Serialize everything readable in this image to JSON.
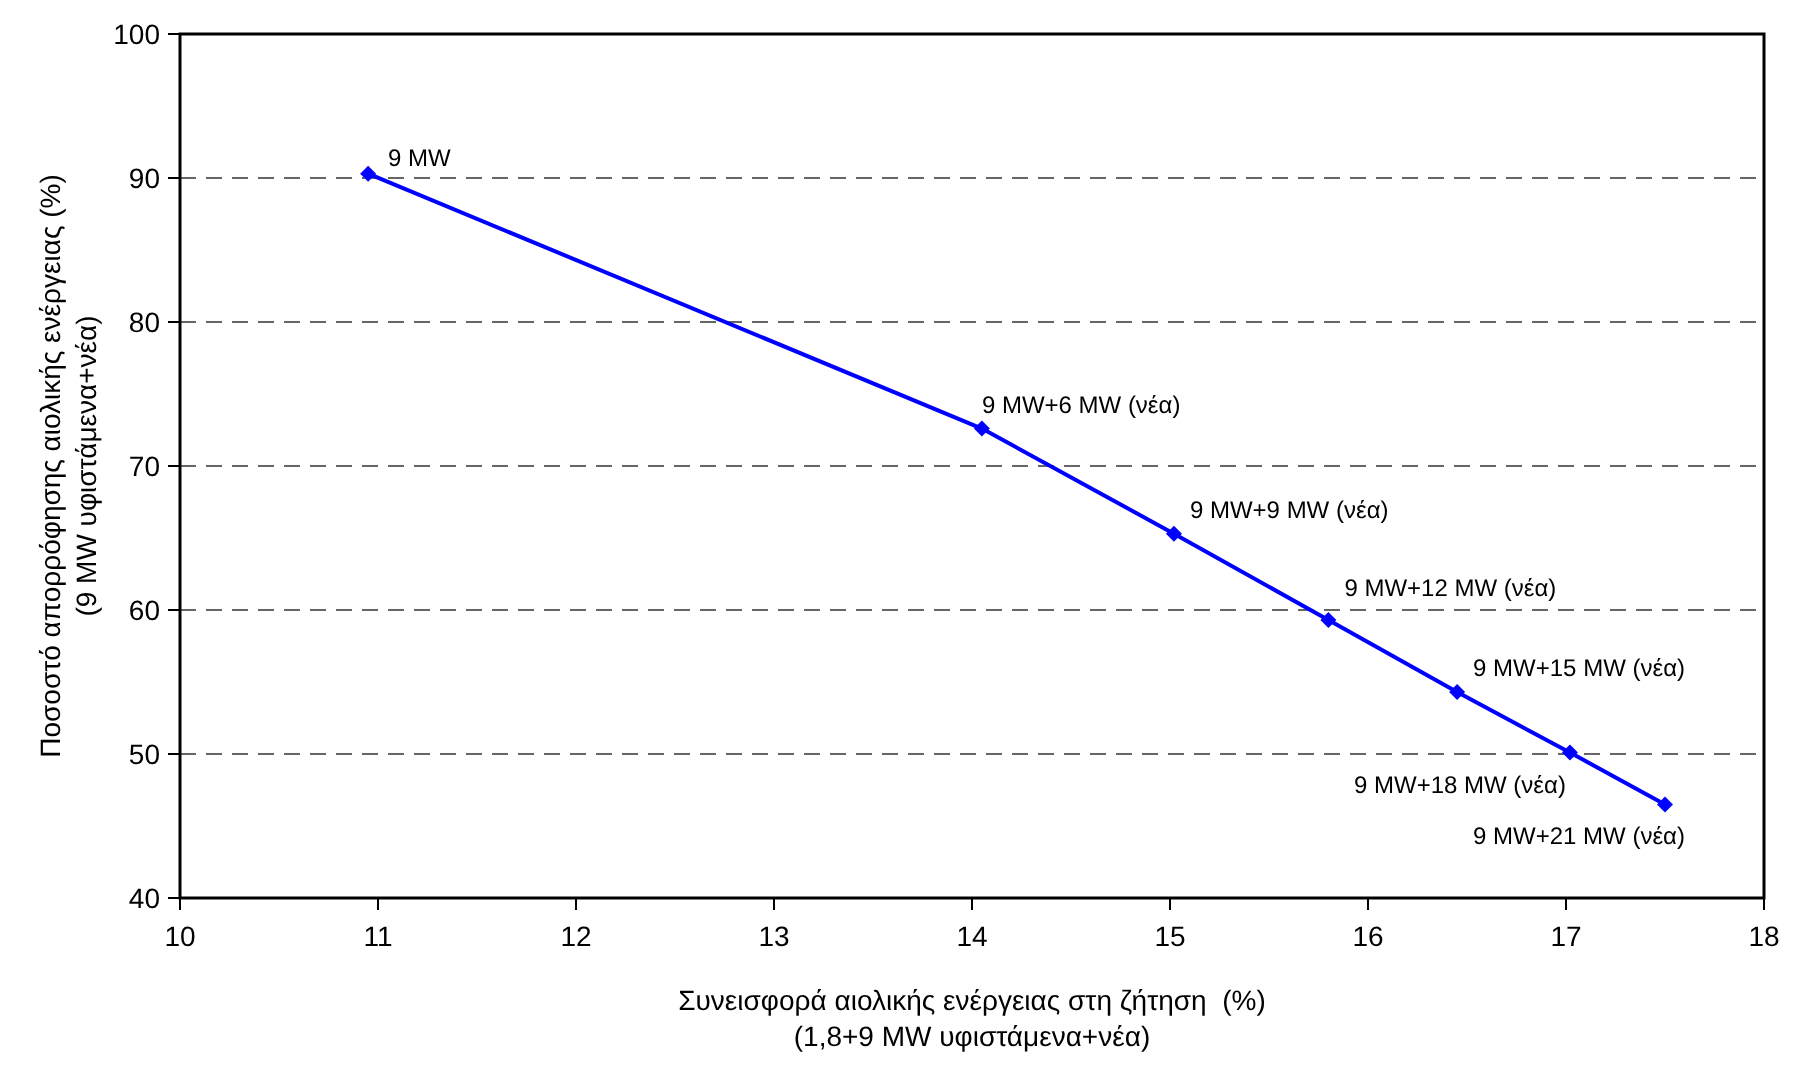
{
  "chart_data": {
    "type": "line",
    "xlabel": "Συνεισφορά αιολικής ενέργειας στη ζήτηση  (%)\n(1,8+9 MW υφιστάμενα+νέα)",
    "ylabel": "Ποσοστό απορρόφησης αιολικής ενέργειας (%)\n(9 MW υφιστάμενα+νέα)",
    "x": [
      10.95,
      14.05,
      15.02,
      15.8,
      16.45,
      17.02,
      17.5
    ],
    "series": [
      {
        "color": "#0000ff",
        "values": [
          90.3,
          72.6,
          65.3,
          59.3,
          54.3,
          50.1,
          46.5
        ]
      }
    ],
    "xlim": [
      10,
      18
    ],
    "xticks": [
      10,
      11,
      12,
      13,
      14,
      15,
      16,
      17,
      18
    ],
    "ylim": [
      40,
      100
    ],
    "yticks": [
      40,
      50,
      60,
      70,
      80,
      90,
      100
    ],
    "grid": "y",
    "marker": "diamond",
    "line_style": "solid",
    "annotations": [
      {
        "text": "9 MW",
        "x": 10.95,
        "y": 90.3
      },
      {
        "text": "9 MW+6 MW (νέα)",
        "x": 14.05,
        "y": 72.6
      },
      {
        "text": "9 MW+9 MW (νέα)",
        "x": 15.02,
        "y": 65.3
      },
      {
        "text": "9 MW+12 MW (νέα)",
        "x": 15.8,
        "y": 59.3
      },
      {
        "text": "9 MW+15 MW (νέα)",
        "x": 16.45,
        "y": 54.3
      },
      {
        "text": "9 MW+18 MW (νέα)",
        "x": 17.02,
        "y": 50.1
      },
      {
        "text": "9 MW+21 MW (νέα)",
        "x": 17.5,
        "y": 46.5
      }
    ]
  }
}
